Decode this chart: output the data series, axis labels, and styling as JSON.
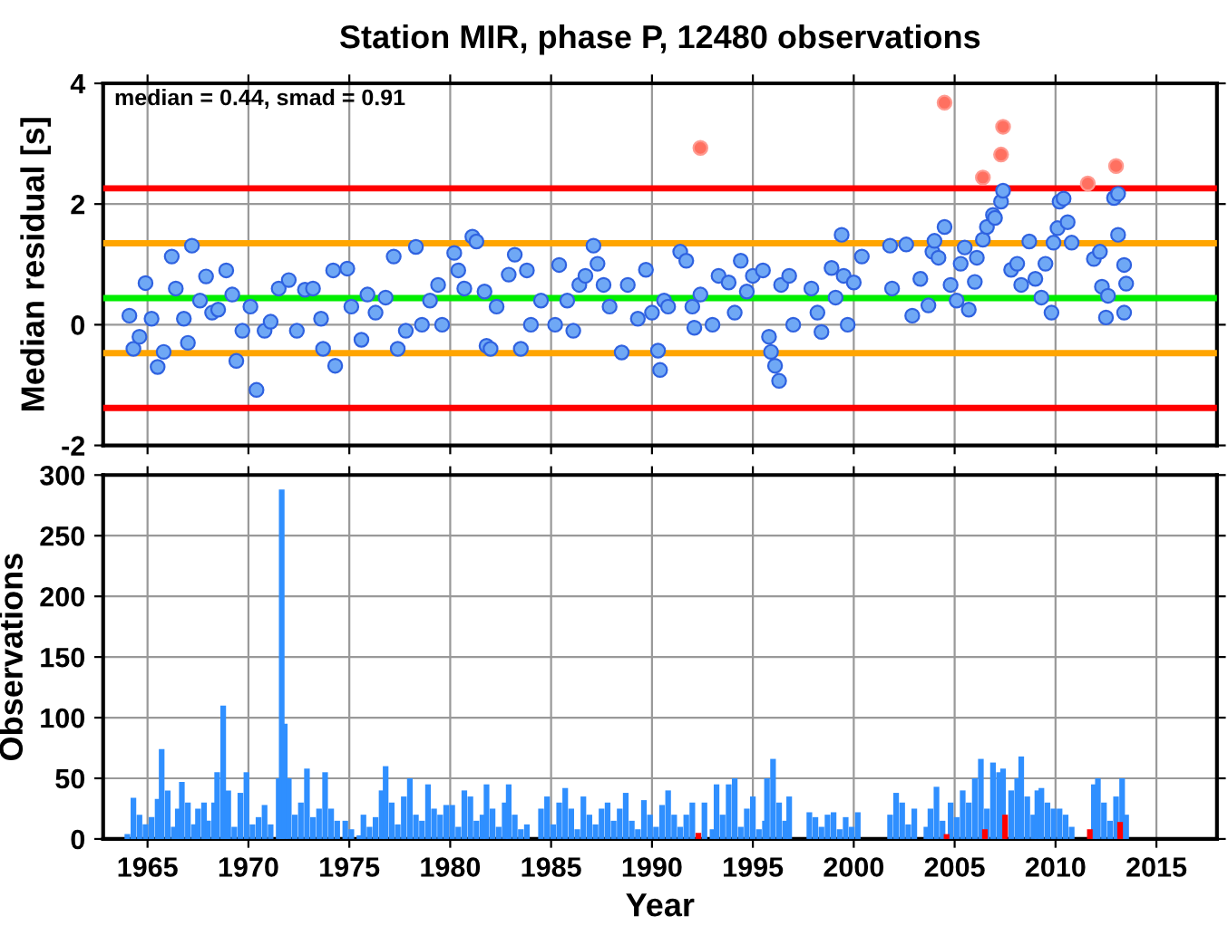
{
  "chart_data": [
    {
      "type": "scatter",
      "title": "Station MIR, phase P, 12480 observations",
      "ylabel": "Median residual [s]",
      "annotations": [
        "median = 0.44, smad = 0.91"
      ],
      "xlim": [
        1962.8,
        2018
      ],
      "xticks": [
        1965,
        1970,
        1975,
        1980,
        1985,
        1990,
        1995,
        2000,
        2005,
        2010,
        2015
      ],
      "ylim": [
        -2,
        4
      ],
      "yticks": [
        -2,
        0,
        2,
        4
      ],
      "tick_labels": "y",
      "grid": true,
      "marker": "circle",
      "ref_lines": [
        {
          "axis": "y",
          "value": 2.26,
          "color": "#ff0000"
        },
        {
          "axis": "y",
          "value": 1.35,
          "color": "#ffa500"
        },
        {
          "axis": "y",
          "value": 0.44,
          "color": "#00ee00"
        },
        {
          "axis": "y",
          "value": -0.47,
          "color": "#ffa500"
        },
        {
          "axis": "y",
          "value": -1.38,
          "color": "#ff0000"
        }
      ],
      "series": [
        {
          "color": "#6fa8f5",
          "x": [
            1964.1,
            1964.3,
            1964.6,
            1964.9,
            1965.2,
            1965.5,
            1965.8,
            1966.2,
            1966.4,
            1966.8,
            1967.0,
            1967.2,
            1967.6,
            1967.9,
            1968.2,
            1968.5,
            1968.9,
            1969.2,
            1969.4,
            1969.7,
            1970.1,
            1970.4,
            1970.8,
            1971.1,
            1971.5,
            1972.0,
            1972.4,
            1972.8,
            1973.2,
            1973.6,
            1973.7,
            1974.2,
            1974.3,
            1974.9,
            1975.1,
            1975.6,
            1975.9,
            1976.3,
            1976.8,
            1977.2,
            1977.4,
            1977.8,
            1978.3,
            1978.6,
            1979.0,
            1979.4,
            1979.6,
            1980.2,
            1980.4,
            1980.7,
            1981.1,
            1981.3,
            1981.7,
            1981.8,
            1982.0,
            1982.3,
            1982.9,
            1983.2,
            1983.5,
            1983.8,
            1984.0,
            1984.5,
            1985.2,
            1985.4,
            1985.8,
            1986.1,
            1986.4,
            1986.7,
            1987.1,
            1987.3,
            1987.6,
            1987.9,
            1988.5,
            1988.8,
            1989.3,
            1989.7,
            1990.0,
            1990.4,
            1990.6,
            1990.3,
            1990.8,
            1991.4,
            1991.7,
            1992.0,
            1992.1,
            1992.4,
            1993.0,
            1993.3,
            1993.8,
            1994.1,
            1994.4,
            1994.7,
            1995.0,
            1995.5,
            1995.8,
            1995.9,
            1996.1,
            1996.3,
            1996.4,
            1996.8,
            1997.0,
            1997.9,
            1998.2,
            1998.4,
            1998.9,
            1999.1,
            1999.4,
            1999.5,
            1999.7,
            2000.0,
            2000.4,
            2001.8,
            2001.9,
            2002.6,
            2002.9,
            2003.3,
            2003.7,
            2003.9,
            2004.0,
            2004.2,
            2004.5,
            2004.8,
            2005.1,
            2005.3,
            2005.5,
            2005.7,
            2006.0,
            2006.1,
            2006.4,
            2006.6,
            2006.9,
            2007.0,
            2007.3,
            2007.4,
            2007.8,
            2008.1,
            2008.3,
            2008.7,
            2009.0,
            2009.3,
            2009.5,
            2009.8,
            2009.9,
            2010.1,
            2010.2,
            2010.4,
            2010.6,
            2010.8,
            2011.9,
            2012.2,
            2012.3,
            2012.5,
            2012.6,
            2012.9,
            2013.1,
            2013.1,
            2013.4,
            2013.5,
            2013.4
          ],
          "values": [
            0.15,
            -0.4,
            -0.2,
            0.69,
            0.1,
            -0.7,
            -0.45,
            1.13,
            0.6,
            0.1,
            -0.3,
            1.31,
            0.4,
            0.8,
            0.2,
            0.25,
            0.9,
            0.5,
            -0.6,
            -0.1,
            0.3,
            -1.08,
            -0.1,
            0.05,
            0.6,
            0.74,
            -0.1,
            0.58,
            0.6,
            0.1,
            -0.4,
            0.9,
            -0.68,
            0.93,
            0.3,
            -0.25,
            0.5,
            0.2,
            0.45,
            1.13,
            -0.4,
            -0.1,
            1.29,
            0.0,
            0.4,
            0.66,
            0.0,
            1.19,
            0.9,
            0.6,
            1.46,
            1.38,
            0.55,
            -0.35,
            -0.4,
            0.3,
            0.83,
            1.16,
            -0.4,
            0.9,
            0.0,
            0.4,
            0.0,
            0.99,
            0.4,
            -0.1,
            0.66,
            0.81,
            1.31,
            1.01,
            0.66,
            0.3,
            -0.46,
            0.66,
            0.1,
            0.91,
            0.2,
            -0.75,
            0.4,
            -0.43,
            0.3,
            1.21,
            1.06,
            0.3,
            -0.05,
            0.5,
            0.0,
            0.81,
            0.7,
            0.2,
            1.06,
            0.55,
            0.81,
            0.9,
            -0.2,
            -0.45,
            -0.68,
            -0.93,
            0.66,
            0.81,
            0.0,
            0.6,
            0.2,
            -0.12,
            0.94,
            0.45,
            1.49,
            0.81,
            0.0,
            0.7,
            1.13,
            1.31,
            0.6,
            1.33,
            0.15,
            0.76,
            0.32,
            1.21,
            1.39,
            1.11,
            1.62,
            0.66,
            0.4,
            1.01,
            1.28,
            0.25,
            0.71,
            1.11,
            1.41,
            1.62,
            1.82,
            1.77,
            2.04,
            2.22,
            0.91,
            1.01,
            0.66,
            1.38,
            0.76,
            0.45,
            1.01,
            0.2,
            1.36,
            1.6,
            2.04,
            2.09,
            1.7,
            1.36,
            1.09,
            1.21,
            0.63,
            0.12,
            0.48,
            2.1,
            2.17,
            1.49,
            0.99,
            0.68,
            0.2
          ]
        },
        {
          "color": "#ff7060",
          "x": [
            1992.4,
            2004.5,
            2007.4,
            2007.3,
            2006.4,
            2011.6,
            2013.0
          ],
          "values": [
            2.93,
            3.68,
            3.28,
            2.82,
            2.44,
            2.34,
            2.63
          ]
        }
      ]
    },
    {
      "type": "bar",
      "xlabel": "Year",
      "ylabel": "Observations",
      "xlim": [
        1962.8,
        2018
      ],
      "xticks": [
        1965,
        1970,
        1975,
        1980,
        1985,
        1990,
        1995,
        2000,
        2005,
        2010,
        2015
      ],
      "ylim": [
        0,
        300
      ],
      "yticks": [
        0,
        50,
        100,
        150,
        200,
        250,
        300
      ],
      "grid": true,
      "series": [
        {
          "color": "#2f8fff",
          "x": [
            1964.0,
            1964.3,
            1964.6,
            1964.9,
            1965.2,
            1965.5,
            1965.7,
            1966.0,
            1966.3,
            1966.5,
            1966.7,
            1967.0,
            1967.3,
            1967.5,
            1967.8,
            1968.0,
            1968.3,
            1968.45,
            1968.75,
            1969.0,
            1969.3,
            1969.6,
            1969.9,
            1970.2,
            1970.5,
            1970.8,
            1971.1,
            1971.5,
            1971.65,
            1971.8,
            1972.0,
            1972.3,
            1972.6,
            1972.9,
            1973.2,
            1973.5,
            1973.8,
            1974.1,
            1974.4,
            1974.8,
            1975.1,
            1975.5,
            1975.7,
            1976.0,
            1976.3,
            1976.6,
            1976.8,
            1977.1,
            1977.4,
            1977.7,
            1978.0,
            1978.3,
            1978.6,
            1978.9,
            1979.2,
            1979.5,
            1979.8,
            1980.1,
            1980.4,
            1980.7,
            1981.0,
            1981.3,
            1981.6,
            1981.8,
            1982.1,
            1982.4,
            1982.7,
            1982.9,
            1983.2,
            1983.5,
            1983.8,
            1984.5,
            1984.8,
            1985.1,
            1985.4,
            1985.7,
            1986.0,
            1986.3,
            1986.6,
            1986.9,
            1987.2,
            1987.5,
            1987.8,
            1988.1,
            1988.4,
            1988.7,
            1989.0,
            1989.3,
            1989.6,
            1989.9,
            1990.2,
            1990.5,
            1990.8,
            1991.1,
            1991.4,
            1991.7,
            1992.0,
            1992.6,
            1993.0,
            1993.2,
            1993.5,
            1993.8,
            1994.1,
            1994.4,
            1994.7,
            1995.0,
            1995.3,
            1995.6,
            1995.7,
            1996.0,
            1996.3,
            1996.6,
            1996.8,
            1997.8,
            1998.1,
            1998.4,
            1998.7,
            1999.0,
            1999.3,
            1999.6,
            1999.9,
            2000.2,
            2001.8,
            2002.1,
            2002.4,
            2002.7,
            2003.0,
            2003.6,
            2003.8,
            2004.1,
            2004.4,
            2004.8,
            2005.1,
            2005.4,
            2005.7,
            2006.0,
            2006.3,
            2006.6,
            2006.9,
            2007.2,
            2007.4,
            2007.8,
            2008.1,
            2008.3,
            2008.6,
            2008.9,
            2009.1,
            2009.3,
            2009.6,
            2009.9,
            2010.2,
            2010.5,
            2010.8,
            2011.9,
            2012.1,
            2012.4,
            2012.7,
            2013.0,
            2013.3,
            2013.5
          ],
          "values": [
            4,
            34,
            20,
            12,
            18,
            33,
            74,
            40,
            10,
            25,
            47,
            30,
            12,
            25,
            30,
            15,
            30,
            55,
            110,
            40,
            10,
            38,
            55,
            12,
            18,
            28,
            12,
            50,
            288,
            95,
            50,
            20,
            30,
            58,
            18,
            25,
            55,
            25,
            15,
            15,
            8,
            3,
            20,
            10,
            18,
            40,
            60,
            30,
            12,
            35,
            50,
            20,
            15,
            45,
            25,
            20,
            28,
            28,
            10,
            40,
            35,
            15,
            20,
            45,
            25,
            10,
            30,
            45,
            20,
            8,
            12,
            25,
            35,
            12,
            30,
            42,
            25,
            8,
            35,
            20,
            12,
            25,
            30,
            15,
            25,
            38,
            15,
            8,
            32,
            20,
            10,
            28,
            40,
            20,
            10,
            20,
            30,
            30,
            8,
            45,
            20,
            45,
            50,
            10,
            25,
            35,
            8,
            15,
            50,
            66,
            30,
            15,
            35,
            22,
            18,
            10,
            20,
            22,
            8,
            18,
            10,
            22,
            20,
            38,
            30,
            12,
            25,
            10,
            25,
            43,
            15,
            30,
            18,
            40,
            30,
            50,
            66,
            25,
            63,
            55,
            58,
            40,
            50,
            68,
            35,
            20,
            40,
            42,
            30,
            25,
            25,
            20,
            10,
            45,
            50,
            30,
            15,
            35,
            50,
            20
          ]
        },
        {
          "color": "#ff0000",
          "x": [
            1992.3,
            2004.6,
            2006.5,
            2007.5,
            2011.7,
            2013.2
          ],
          "values": [
            5,
            4,
            8,
            20,
            8,
            14
          ]
        }
      ]
    }
  ]
}
